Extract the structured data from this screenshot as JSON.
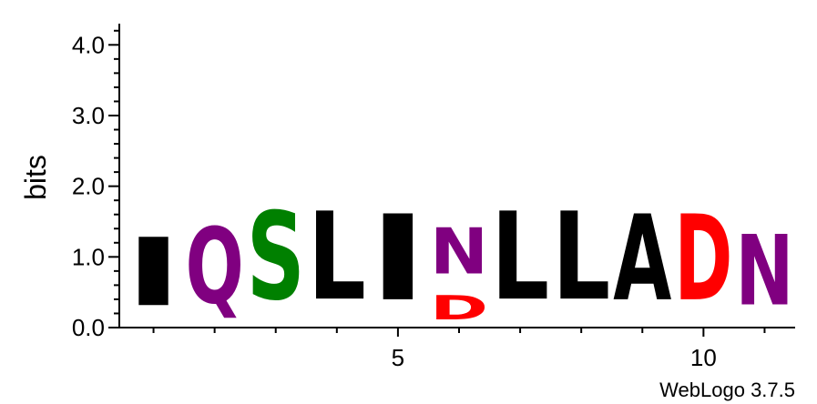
{
  "chart_data": {
    "type": "sequence-logo",
    "ylabel": "bits",
    "ylim": [
      0,
      4.3
    ],
    "y_ticks": [
      "0.0",
      "1.0",
      "2.0",
      "3.0",
      "4.0"
    ],
    "x_ticks": [
      "5",
      "10"
    ],
    "credit": "WebLogo 3.7.5",
    "colors": {
      "I": "#000000",
      "L": "#000000",
      "A": "#000000",
      "Q": "#800080",
      "N": "#800080",
      "S": "#008000",
      "D": "#ff0000"
    },
    "positions": [
      {
        "pos": 1,
        "letters": [
          {
            "letter": "I",
            "bits": 1.55
          }
        ]
      },
      {
        "pos": 2,
        "letters": [
          {
            "letter": "Q",
            "bits": 1.72
          }
        ]
      },
      {
        "pos": 3,
        "letters": [
          {
            "letter": "S",
            "bits": 2.0
          }
        ]
      },
      {
        "pos": 4,
        "letters": [
          {
            "letter": "L",
            "bits": 2.0
          }
        ]
      },
      {
        "pos": 5,
        "letters": [
          {
            "letter": "I",
            "bits": 1.95
          }
        ]
      },
      {
        "pos": 6,
        "letters": [
          {
            "letter": "D",
            "bits": 0.55
          },
          {
            "letter": "N",
            "bits": 1.05
          }
        ]
      },
      {
        "pos": 7,
        "letters": [
          {
            "letter": "L",
            "bits": 2.0
          }
        ]
      },
      {
        "pos": 8,
        "letters": [
          {
            "letter": "L",
            "bits": 2.0
          }
        ]
      },
      {
        "pos": 9,
        "letters": [
          {
            "letter": "A",
            "bits": 1.95
          }
        ]
      },
      {
        "pos": 10,
        "letters": [
          {
            "letter": "D",
            "bits": 1.95
          }
        ]
      },
      {
        "pos": 11,
        "letters": [
          {
            "letter": "N",
            "bits": 1.6
          }
        ]
      }
    ]
  }
}
